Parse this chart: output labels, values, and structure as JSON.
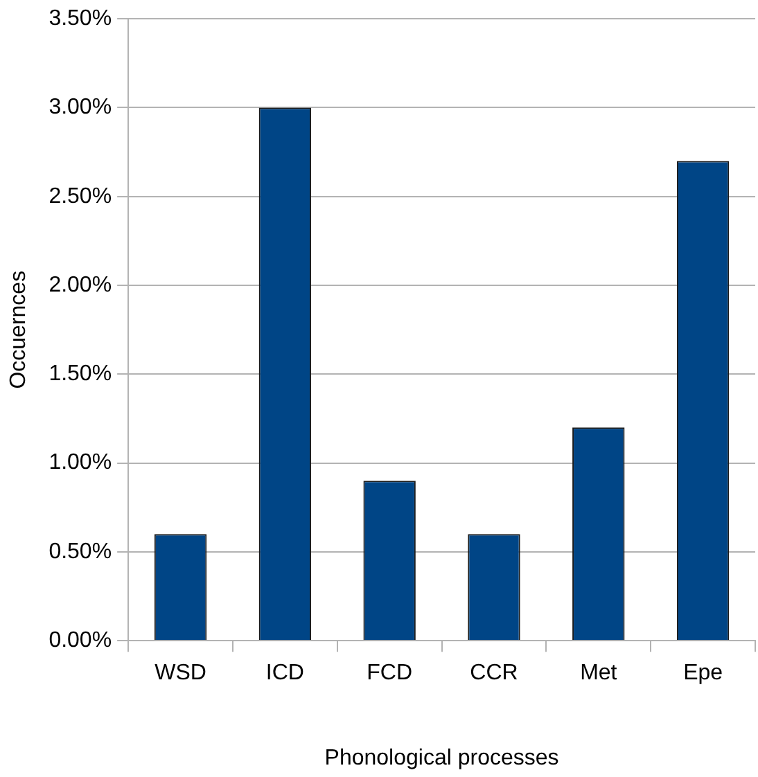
{
  "chart_data": {
    "type": "bar",
    "xlabel": "Phonological processes",
    "ylabel": "Occuernces",
    "categories": [
      "WSD",
      "ICD",
      "FCD",
      "CCR",
      "Met",
      "Epe"
    ],
    "values": [
      0.6,
      3.0,
      0.9,
      0.6,
      1.2,
      2.7
    ],
    "color": "#004586",
    "ylim": [
      0,
      3.5
    ],
    "yticks": [
      {
        "value": 0,
        "label": "0.00%"
      },
      {
        "value": 0.5,
        "label": "0.50%"
      },
      {
        "value": 1,
        "label": "1.00%"
      },
      {
        "value": 1.5,
        "label": "1.50%"
      },
      {
        "value": 2,
        "label": "2.00%"
      },
      {
        "value": 2.5,
        "label": "2.50%"
      },
      {
        "value": 3,
        "label": "3.00%"
      },
      {
        "value": 3.5,
        "label": "3.50%"
      }
    ],
    "grid": "y",
    "legend": false
  }
}
